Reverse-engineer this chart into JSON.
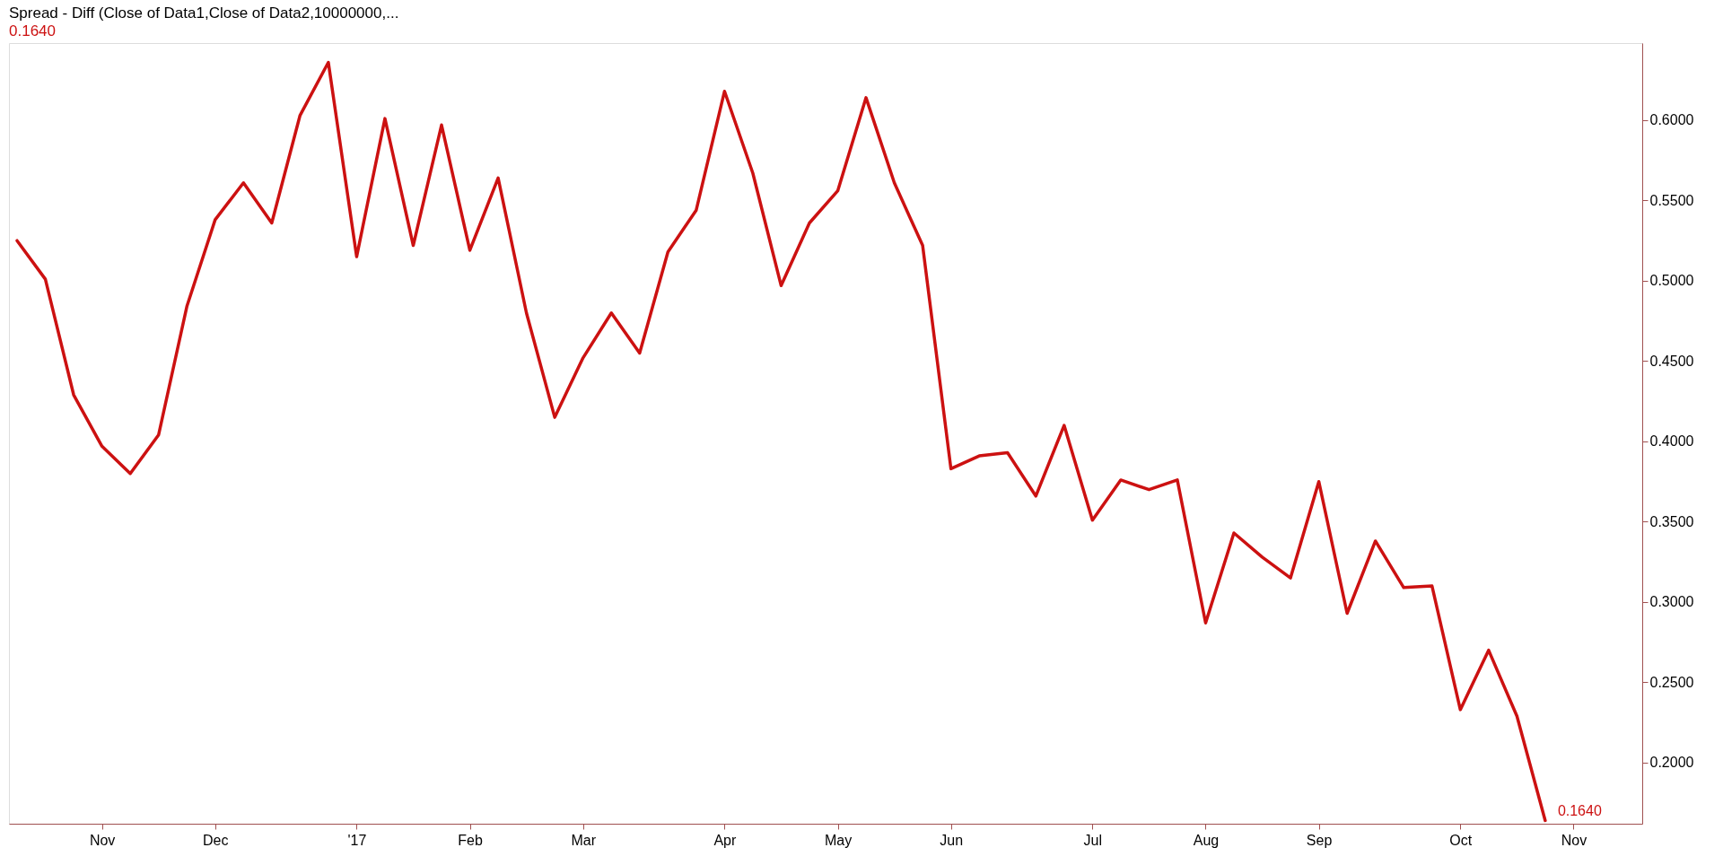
{
  "chart_data": {
    "type": "line",
    "title": "Spread - Diff (Close of Data1,Close of Data2,10000000,...",
    "subtitle": "0.1640",
    "x": [
      "2016-10-14",
      "2016-10-21",
      "2016-10-28",
      "2016-11-04",
      "2016-11-11",
      "2016-11-18",
      "2016-11-25",
      "2016-12-02",
      "2016-12-09",
      "2016-12-16",
      "2016-12-23",
      "2016-12-30",
      "2017-01-06",
      "2017-01-13",
      "2017-01-20",
      "2017-01-27",
      "2017-02-03",
      "2017-02-10",
      "2017-02-17",
      "2017-02-24",
      "2017-03-03",
      "2017-03-10",
      "2017-03-17",
      "2017-03-24",
      "2017-03-31",
      "2017-04-07",
      "2017-04-14",
      "2017-04-21",
      "2017-04-28",
      "2017-05-05",
      "2017-05-12",
      "2017-05-19",
      "2017-05-26",
      "2017-06-02",
      "2017-06-09",
      "2017-06-16",
      "2017-06-23",
      "2017-06-30",
      "2017-07-07",
      "2017-07-14",
      "2017-07-21",
      "2017-07-28",
      "2017-08-04",
      "2017-08-11",
      "2017-08-18",
      "2017-08-25",
      "2017-09-01",
      "2017-09-08",
      "2017-09-15",
      "2017-09-22",
      "2017-09-29",
      "2017-10-06",
      "2017-10-13",
      "2017-10-20",
      "2017-10-27"
    ],
    "series": [
      {
        "color": "#cc1111",
        "values": [
          0.525,
          0.501,
          0.429,
          0.397,
          0.38,
          0.404,
          0.484,
          0.538,
          0.561,
          0.536,
          0.603,
          0.636,
          0.515,
          0.601,
          0.522,
          0.597,
          0.519,
          0.564,
          0.48,
          0.415,
          0.452,
          0.48,
          0.455,
          0.518,
          0.544,
          0.618,
          0.567,
          0.497,
          0.536,
          0.556,
          0.614,
          0.561,
          0.522,
          0.383,
          0.391,
          0.393,
          0.366,
          0.41,
          0.351,
          0.376,
          0.37,
          0.376,
          0.287,
          0.343,
          0.328,
          0.315,
          0.375,
          0.293,
          0.338,
          0.309,
          0.31,
          0.233,
          0.27,
          0.229,
          0.164
        ]
      }
    ],
    "xlim": [
      "2016-10-12",
      "2017-11-20"
    ],
    "xticks": [
      {
        "value": "2016-11-04",
        "label": "Nov"
      },
      {
        "value": "2016-12-02",
        "label": "Dec"
      },
      {
        "value": "2017-01-06",
        "label": "'17"
      },
      {
        "value": "2017-02-03",
        "label": "Feb"
      },
      {
        "value": "2017-03-03",
        "label": "Mar"
      },
      {
        "value": "2017-04-07",
        "label": "Apr"
      },
      {
        "value": "2017-05-05",
        "label": "May"
      },
      {
        "value": "2017-06-02",
        "label": "Jun"
      },
      {
        "value": "2017-07-07",
        "label": "Jul"
      },
      {
        "value": "2017-08-04",
        "label": "Aug"
      },
      {
        "value": "2017-09-01",
        "label": "Sep"
      },
      {
        "value": "2017-10-06",
        "label": "Oct"
      },
      {
        "value": "2017-11-03",
        "label": "Nov"
      }
    ],
    "ylim": [
      0.162,
      0.648
    ],
    "yticks": [
      {
        "value": 0.2,
        "label": "0.2000"
      },
      {
        "value": 0.25,
        "label": "0.2500"
      },
      {
        "value": 0.3,
        "label": "0.3000"
      },
      {
        "value": 0.35,
        "label": "0.3500"
      },
      {
        "value": 0.4,
        "label": "0.4000"
      },
      {
        "value": 0.45,
        "label": "0.4500"
      },
      {
        "value": 0.5,
        "label": "0.5000"
      },
      {
        "value": 0.55,
        "label": "0.5500"
      },
      {
        "value": 0.6,
        "label": "0.6000"
      }
    ],
    "annotations": [
      {
        "text": "0.1640",
        "x": "2017-10-27",
        "y": 0.164
      }
    ],
    "grid": false,
    "marker": "none",
    "line_style": "solid"
  }
}
